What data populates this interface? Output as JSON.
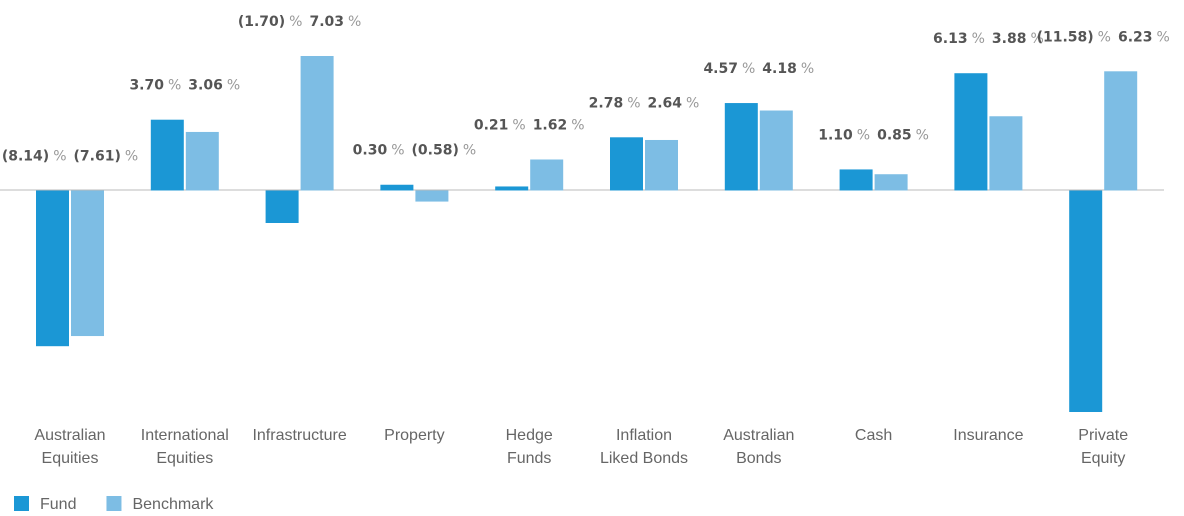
{
  "chart_data": {
    "type": "bar",
    "unit": "%",
    "categories": [
      [
        "Australian",
        "Equities"
      ],
      [
        "International",
        "Equities"
      ],
      [
        "Infrastructure"
      ],
      [
        "Property"
      ],
      [
        "Hedge",
        "Funds"
      ],
      [
        "Inflation",
        "Liked Bonds"
      ],
      [
        "Australian",
        "Bonds"
      ],
      [
        "Cash"
      ],
      [
        "Insurance"
      ],
      [
        "Private",
        "Equity"
      ]
    ],
    "series": [
      {
        "name": "Fund",
        "color": "#1b97d5",
        "values": [
          -8.14,
          3.7,
          -1.7,
          0.3,
          0.21,
          2.78,
          4.57,
          1.1,
          6.13,
          -11.58
        ],
        "value_labels": [
          "(8.14)",
          "3.70",
          "(1.70)",
          "0.30",
          "0.21",
          "2.78",
          "4.57",
          "1.10",
          "6.13",
          "(11.58)"
        ]
      },
      {
        "name": "Benchmark",
        "color": "#7dbde4",
        "values": [
          -7.61,
          3.06,
          7.03,
          -0.58,
          1.62,
          2.64,
          4.18,
          0.85,
          3.88,
          6.23
        ],
        "value_labels": [
          "(7.61)",
          "3.06",
          "7.03",
          "(0.58)",
          "1.62",
          "2.64",
          "4.18",
          "0.85",
          "3.88",
          "6.23"
        ]
      }
    ]
  }
}
